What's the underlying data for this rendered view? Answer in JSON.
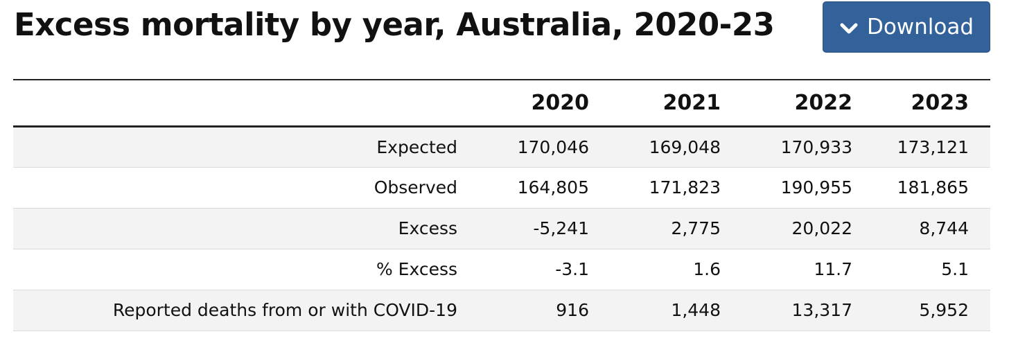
{
  "title": "Excess mortality by year, Australia, 2020-23",
  "download_button": {
    "label": "Download",
    "icon": "chevron-down-icon",
    "color": "#33619a"
  },
  "table": {
    "columns": [
      "2020",
      "2021",
      "2022",
      "2023"
    ],
    "rows": [
      {
        "label": "Expected",
        "values": [
          "170,046",
          "169,048",
          "170,933",
          "173,121"
        ]
      },
      {
        "label": "Observed",
        "values": [
          "164,805",
          "171,823",
          "190,955",
          "181,865"
        ]
      },
      {
        "label": "Excess",
        "values": [
          "-5,241",
          "2,775",
          "20,022",
          "8,744"
        ]
      },
      {
        "label": "% Excess",
        "values": [
          "-3.1",
          "1.6",
          "11.7",
          "5.1"
        ]
      },
      {
        "label": "Reported deaths from or with COVID-19",
        "values": [
          "916",
          "1,448",
          "13,317",
          "5,952"
        ]
      }
    ]
  }
}
